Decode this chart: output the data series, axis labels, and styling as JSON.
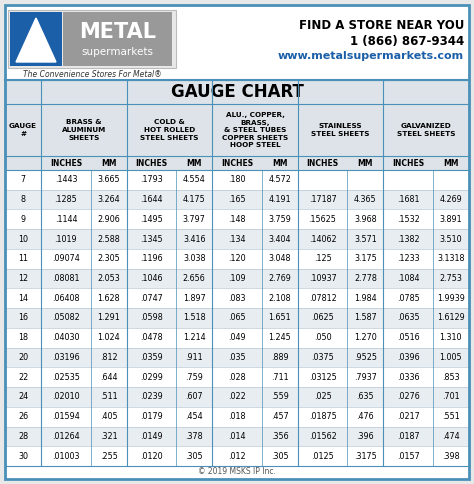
{
  "title": "GAUGE CHART",
  "rows": [
    [
      "7",
      ".1443",
      "3.665",
      ".1793",
      "4.554",
      ".180",
      "4.572",
      "",
      "",
      "",
      ""
    ],
    [
      "8",
      ".1285",
      "3.264",
      ".1644",
      "4.175",
      ".165",
      "4.191",
      ".17187",
      "4.365",
      ".1681",
      "4.269"
    ],
    [
      "9",
      ".1144",
      "2.906",
      ".1495",
      "3.797",
      ".148",
      "3.759",
      ".15625",
      "3.968",
      ".1532",
      "3.891"
    ],
    [
      "10",
      ".1019",
      "2.588",
      ".1345",
      "3.416",
      ".134",
      "3.404",
      ".14062",
      "3.571",
      ".1382",
      "3.510"
    ],
    [
      "11",
      ".09074",
      "2.305",
      ".1196",
      "3.038",
      ".120",
      "3.048",
      ".125",
      "3.175",
      ".1233",
      "3.1318"
    ],
    [
      "12",
      ".08081",
      "2.053",
      ".1046",
      "2.656",
      ".109",
      "2.769",
      ".10937",
      "2.778",
      ".1084",
      "2.753"
    ],
    [
      "14",
      ".06408",
      "1.628",
      ".0747",
      "1.897",
      ".083",
      "2.108",
      ".07812",
      "1.984",
      ".0785",
      "1.9939"
    ],
    [
      "16",
      ".05082",
      "1.291",
      ".0598",
      "1.518",
      ".065",
      "1.651",
      ".0625",
      "1.587",
      ".0635",
      "1.6129"
    ],
    [
      "18",
      ".04030",
      "1.024",
      ".0478",
      "1.214",
      ".049",
      "1.245",
      ".050",
      "1.270",
      ".0516",
      "1.310"
    ],
    [
      "20",
      ".03196",
      ".812",
      ".0359",
      ".911",
      ".035",
      ".889",
      ".0375",
      ".9525",
      ".0396",
      "1.005"
    ],
    [
      "22",
      ".02535",
      ".644",
      ".0299",
      ".759",
      ".028",
      ".711",
      ".03125",
      ".7937",
      ".0336",
      ".853"
    ],
    [
      "24",
      ".02010",
      ".511",
      ".0239",
      ".607",
      ".022",
      ".559",
      ".025",
      ".635",
      ".0276",
      ".701"
    ],
    [
      "26",
      ".01594",
      ".405",
      ".0179",
      ".454",
      ".018",
      ".457",
      ".01875",
      ".476",
      ".0217",
      ".551"
    ],
    [
      "28",
      ".01264",
      ".321",
      ".0149",
      ".378",
      ".014",
      ".356",
      ".01562",
      ".396",
      ".0187",
      ".474"
    ],
    [
      "30",
      ".01003",
      ".255",
      ".0120",
      ".305",
      ".012",
      ".305",
      ".0125",
      ".3175",
      ".0157",
      ".398"
    ]
  ],
  "logo_tagline": "The Convenience Stores For Metal®",
  "contact_line1": "FIND A STORE NEAR YOU",
  "contact_line2": "1 (866) 867-9344",
  "contact_line3": "www.metalsupermarkets.com",
  "copyright": "© 2019 MSKS IP Inc.",
  "outer_bg": "#e8e8e8",
  "white_bg": "#ffffff",
  "header_area_bg": "#ffffff",
  "table_title_bg": "#dde3e8",
  "col_header_bg": "#dde3e8",
  "row_alt_bg": "#e8edf2",
  "border_color": "#4a90b8",
  "logo_box_bg": "#f0f0f0",
  "logo_blue": "#1a5fa8",
  "logo_gray": "#888888",
  "contact_blue": "#1a5fa8"
}
